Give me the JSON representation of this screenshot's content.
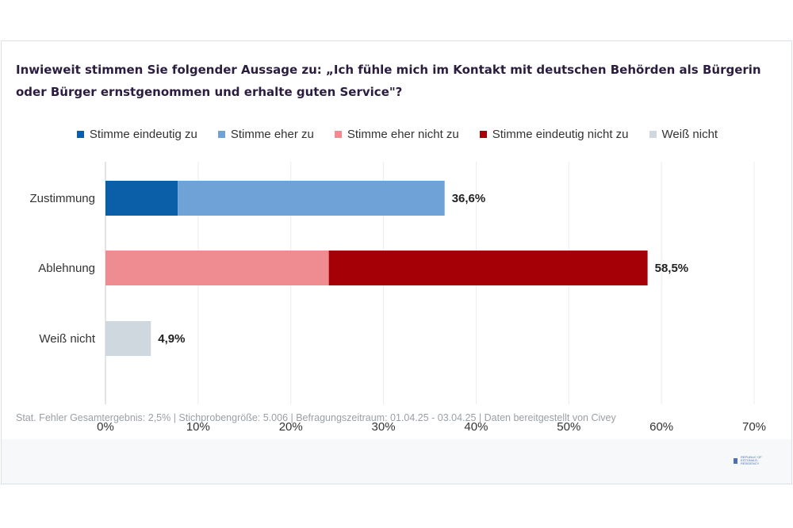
{
  "title": "Inwieweit stimmen Sie folgender Aussage zu: „Ich fühle mich im Kontakt mit deutschen Behörden als Bürgerin oder Bürger ernstgenommen und erhalte guten Service\"?",
  "legend": [
    {
      "label": "Stimme eindeutig zu",
      "color": "#0b5fa8"
    },
    {
      "label": "Stimme eher zu",
      "color": "#6fa3d8"
    },
    {
      "label": "Stimme eher nicht zu",
      "color": "#ef8c92"
    },
    {
      "label": "Stimme eindeutig nicht zu",
      "color": "#a50005"
    },
    {
      "label": "Weiß nicht",
      "color": "#cfd7df"
    }
  ],
  "chart_data": {
    "type": "bar",
    "orientation": "horizontal",
    "stacked": true,
    "categories": [
      "Zustimmung",
      "Ablehnung",
      "Weiß nicht"
    ],
    "series": [
      {
        "name": "Stimme eindeutig zu",
        "values": [
          7.8,
          0,
          0
        ]
      },
      {
        "name": "Stimme eher zu",
        "values": [
          28.8,
          0,
          0
        ]
      },
      {
        "name": "Stimme eher nicht zu",
        "values": [
          0,
          24.1,
          0
        ]
      },
      {
        "name": "Stimme eindeutig nicht zu",
        "values": [
          0,
          34.4,
          0
        ]
      },
      {
        "name": "Weiß nicht",
        "values": [
          0,
          0,
          4.9
        ]
      }
    ],
    "totals": [
      36.6,
      58.5,
      4.9
    ],
    "total_labels": [
      "36,6%",
      "58,5%",
      "4,9%"
    ],
    "xlim": [
      0,
      70
    ],
    "xticks": [
      0,
      10,
      20,
      30,
      40,
      50,
      60,
      70
    ],
    "xtick_labels": [
      "0%",
      "10%",
      "20%",
      "30%",
      "40%",
      "50%",
      "60%",
      "70%"
    ],
    "grid": true,
    "legend_position": "top"
  },
  "footnote": "Stat. Fehler Gesamtergebnis: 2,5% | Stichprobengröße: 5.006 | Befragungszeitraum: 01.04.25 - 03.04.25 | Daten bereitgestellt von Civey",
  "logo_text": "REPUBLIC OF ESTONIA E-RESIDENCY"
}
